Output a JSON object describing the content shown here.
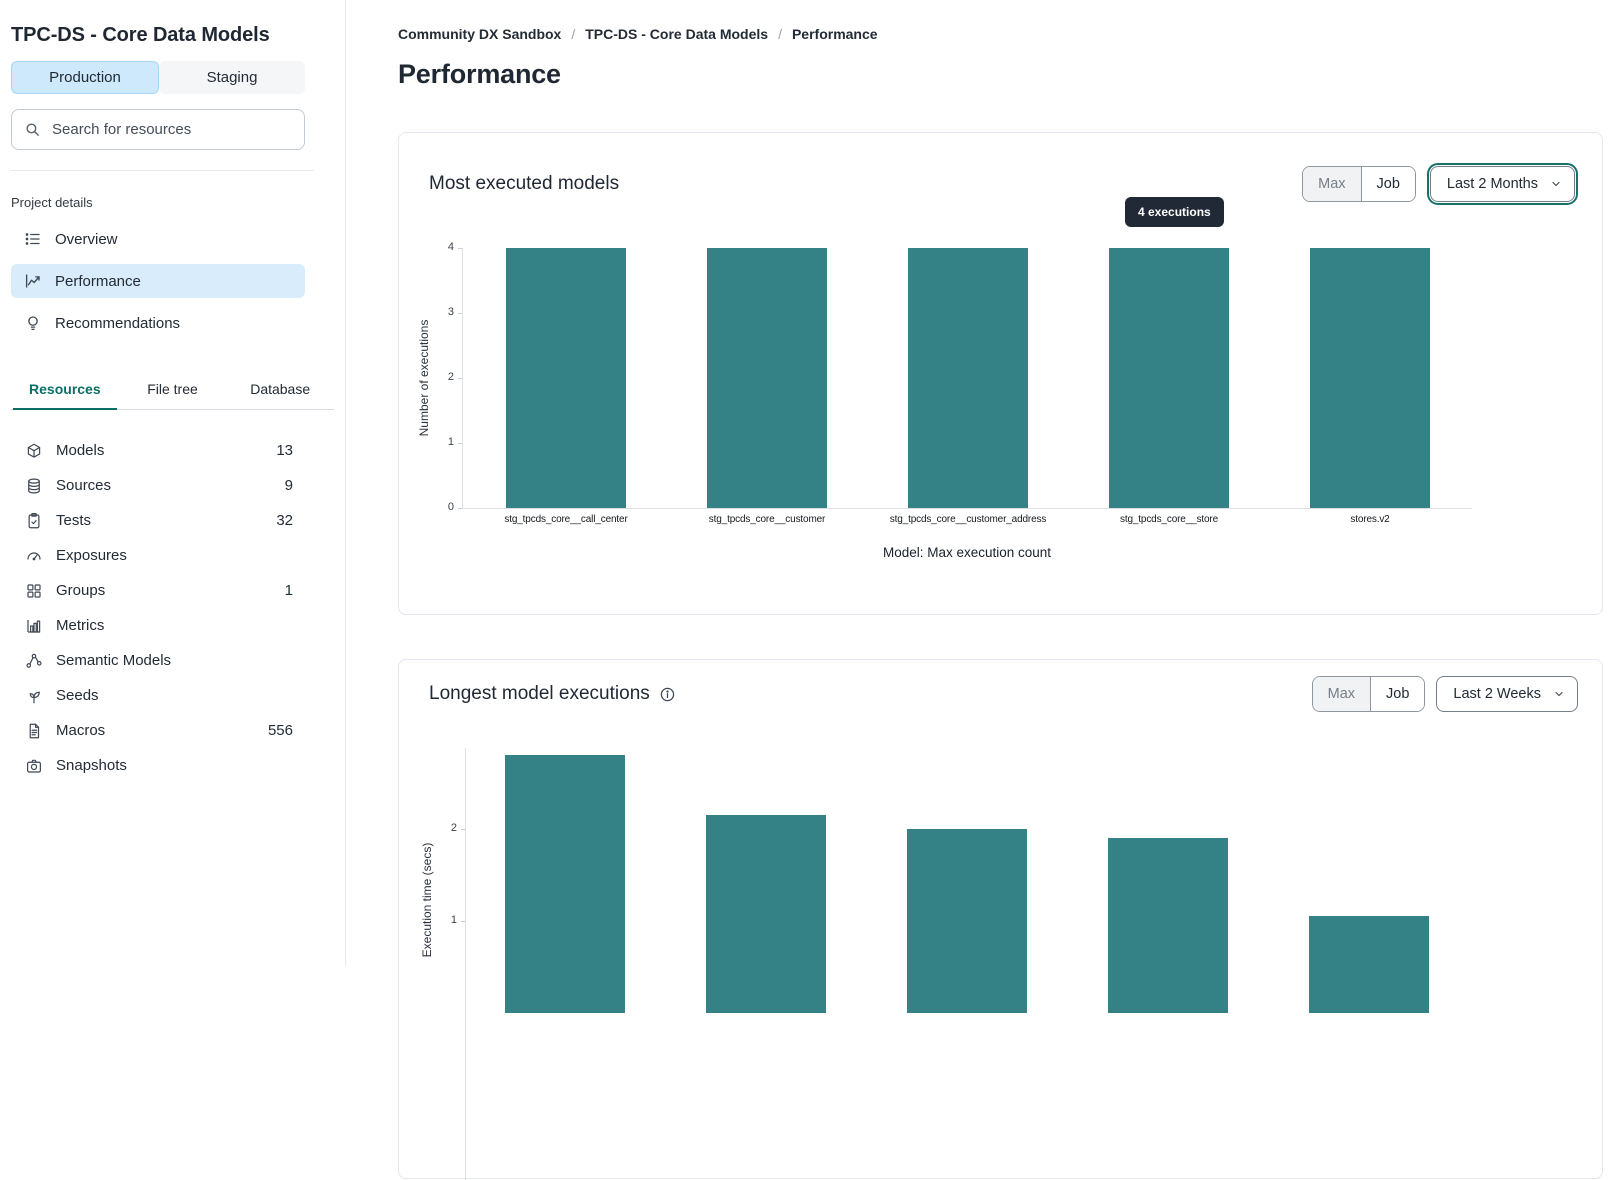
{
  "sidebar": {
    "title": "TPC-DS - Core Data Models",
    "env_tabs": [
      {
        "label": "Production",
        "active": true
      },
      {
        "label": "Staging",
        "active": false
      }
    ],
    "search_placeholder": "Search for resources",
    "section_label": "Project details",
    "nav": [
      {
        "label": "Overview",
        "icon": "list-icon",
        "active": false
      },
      {
        "label": "Performance",
        "icon": "trend-chart-icon",
        "active": true
      },
      {
        "label": "Recommendations",
        "icon": "lightbulb-icon",
        "active": false
      }
    ],
    "tabs": [
      "Resources",
      "File tree",
      "Database"
    ],
    "resources": [
      {
        "label": "Models",
        "count": "13",
        "icon": "cube-icon"
      },
      {
        "label": "Sources",
        "count": "9",
        "icon": "database-icon"
      },
      {
        "label": "Tests",
        "count": "32",
        "icon": "clipboard-check-icon"
      },
      {
        "label": "Exposures",
        "count": "",
        "icon": "gauge-icon"
      },
      {
        "label": "Groups",
        "count": "1",
        "icon": "grid-icon"
      },
      {
        "label": "Metrics",
        "count": "",
        "icon": "bar-chart-icon"
      },
      {
        "label": "Semantic Models",
        "count": "",
        "icon": "network-icon"
      },
      {
        "label": "Seeds",
        "count": "",
        "icon": "sprout-icon"
      },
      {
        "label": "Macros",
        "count": "556",
        "icon": "file-icon"
      },
      {
        "label": "Snapshots",
        "count": "",
        "icon": "camera-icon"
      }
    ]
  },
  "main": {
    "breadcrumb": {
      "items": [
        "Community DX Sandbox",
        "TPC-DS - Core Data Models",
        "Performance"
      ],
      "separator": "/"
    },
    "title": "Performance"
  },
  "cards": [
    {
      "title": "Most executed models",
      "view_toggle": {
        "options": [
          "Max",
          "Job"
        ],
        "selected": "Job"
      },
      "time_range": "Last 2 Months",
      "time_range_focused": true,
      "tooltip": "4 executions"
    },
    {
      "title": "Longest model executions",
      "has_info_icon": true,
      "view_toggle": {
        "options": [
          "Max",
          "Job"
        ],
        "selected": "Job"
      },
      "time_range": "Last 2 Weeks",
      "time_range_focused": false
    }
  ],
  "chart_data": [
    {
      "type": "bar",
      "title": "Most executed models",
      "categories": [
        "stg_tpcds_core__call_center",
        "stg_tpcds_core__customer",
        "stg_tpcds_core__customer_address",
        "stg_tpcds_core__store",
        "stores.v2"
      ],
      "values": [
        4,
        4,
        4,
        4,
        4
      ],
      "ylabel": "Number of executions",
      "xlabel": "Model: Max execution count",
      "ylim": [
        0,
        4
      ],
      "yticks": [
        0,
        1,
        2,
        3,
        4
      ],
      "bar_color": "#348285",
      "grid": false,
      "legend": false,
      "tooltip_shown": "4 executions"
    },
    {
      "type": "bar",
      "title": "Longest model executions",
      "values": [
        2.8,
        2.15,
        2.0,
        1.9,
        1.05
      ],
      "ylabel": "Execution time (secs)",
      "ylim": [
        0,
        3
      ],
      "yticks": [
        1,
        2
      ],
      "bar_color": "#348285",
      "grid": false,
      "legend": false,
      "note": "chart partially visible; x-axis and category labels cut off below viewport"
    }
  ],
  "colors": {
    "bar_teal": "#348285",
    "accent_teal": "#0c6f66",
    "focus_ring_teal": "#17716b",
    "active_item_blue": "#d8ecfb",
    "production_blue": "#cde9fb",
    "tooltip_bg": "#212936"
  }
}
